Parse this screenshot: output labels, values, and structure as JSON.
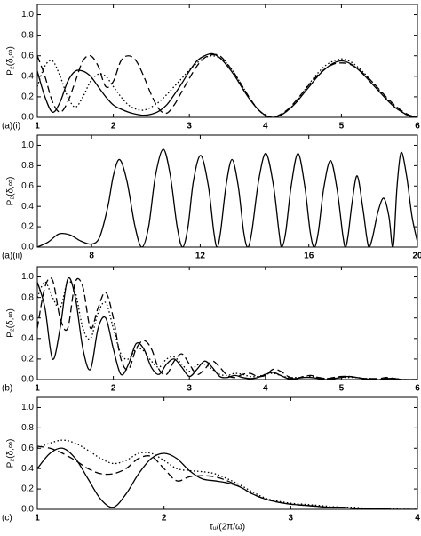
{
  "chart_data": [
    {
      "type": "line",
      "panel_label": "(a)(i)",
      "ylabel": "P₂(δ,∞)",
      "xlim": [
        1,
        6
      ],
      "ylim": [
        0,
        1.1
      ],
      "xticks": [
        1,
        2,
        3,
        4,
        5,
        6
      ],
      "yticks": [
        {
          "value": 0,
          "label": "0.0"
        },
        0.2,
        0.4,
        0.6,
        0.8,
        {
          "value": 1,
          "label": "1.0"
        }
      ],
      "x": [
        1,
        1.1,
        1.2,
        1.3,
        1.4,
        1.5,
        1.6,
        1.7,
        1.8,
        1.9,
        2,
        2.1,
        2.2,
        2.3,
        2.4,
        2.5,
        2.6,
        2.7,
        2.8,
        2.9,
        3,
        3.1,
        3.2,
        3.3,
        3.4,
        3.5,
        3.6,
        3.7,
        3.8,
        3.9,
        4,
        4.1,
        4.2,
        4.3,
        4.4,
        4.5,
        4.6,
        4.7,
        4.8,
        4.9,
        5,
        5.1,
        5.2,
        5.3,
        5.4,
        5.5,
        5.6,
        5.7,
        5.8,
        5.9,
        6
      ],
      "series": [
        {
          "color": "#000",
          "style": "solid",
          "values": [
            0.45,
            0.2,
            0.05,
            0.15,
            0.35,
            0.45,
            0.45,
            0.4,
            0.3,
            0.2,
            0.12,
            0.08,
            0.05,
            0.03,
            0.02,
            0.03,
            0.06,
            0.12,
            0.22,
            0.33,
            0.45,
            0.55,
            0.6,
            0.62,
            0.58,
            0.5,
            0.4,
            0.28,
            0.17,
            0.08,
            0.02,
            0,
            0.02,
            0.07,
            0.14,
            0.23,
            0.32,
            0.41,
            0.48,
            0.53,
            0.55,
            0.53,
            0.48,
            0.41,
            0.33,
            0.25,
            0.17,
            0.1,
            0.05,
            0.01,
            0
          ]
        },
        {
          "color": "#000",
          "style": "dashed",
          "values": [
            0.6,
            0.4,
            0.15,
            0.05,
            0.15,
            0.35,
            0.55,
            0.6,
            0.5,
            0.3,
            0.35,
            0.55,
            0.6,
            0.55,
            0.4,
            0.22,
            0.08,
            0.04,
            0.12,
            0.25,
            0.38,
            0.5,
            0.58,
            0.61,
            0.6,
            0.52,
            0.42,
            0.3,
            0.18,
            0.08,
            0.02,
            0,
            0.03,
            0.08,
            0.16,
            0.25,
            0.34,
            0.42,
            0.48,
            0.52,
            0.53,
            0.52,
            0.48,
            0.42,
            0.35,
            0.27,
            0.19,
            0.12,
            0.06,
            0.02,
            0
          ]
        },
        {
          "color": "#000",
          "style": "dotted",
          "values": [
            0.3,
            0.5,
            0.55,
            0.4,
            0.2,
            0.1,
            0.2,
            0.35,
            0.42,
            0.4,
            0.3,
            0.2,
            0.12,
            0.08,
            0.07,
            0.1,
            0.15,
            0.22,
            0.3,
            0.38,
            0.46,
            0.53,
            0.58,
            0.6,
            0.58,
            0.52,
            0.42,
            0.3,
            0.18,
            0.08,
            0.02,
            0,
            0.02,
            0.07,
            0.15,
            0.25,
            0.35,
            0.44,
            0.51,
            0.55,
            0.57,
            0.55,
            0.5,
            0.43,
            0.35,
            0.26,
            0.18,
            0.11,
            0.05,
            0.01,
            0
          ]
        }
      ]
    },
    {
      "type": "line",
      "panel_label": "(a)(ii)",
      "ylabel": "P₂(δ,∞)",
      "xlim": [
        6,
        20
      ],
      "ylim": [
        0,
        1.1
      ],
      "xticks": [
        8,
        12,
        16,
        20
      ],
      "yticks": [
        {
          "value": 0,
          "label": "0.0"
        },
        0.2,
        0.4,
        0.6,
        0.8,
        {
          "value": 1,
          "label": "1.0"
        }
      ],
      "x": [
        6,
        6.4,
        6.8,
        7.2,
        7.6,
        8,
        8.3,
        8.6,
        8.8,
        9.03,
        9.3,
        9.6,
        9.85,
        10.1,
        10.35,
        10.64,
        10.9,
        11.15,
        11.35,
        11.55,
        11.75,
        12.02,
        12.3,
        12.5,
        12.62,
        12.75,
        12.95,
        13.17,
        13.4,
        13.6,
        13.75,
        13.9,
        14.15,
        14.42,
        14.7,
        14.9,
        15,
        15.15,
        15.35,
        15.6,
        15.85,
        16.05,
        16.2,
        16.35,
        16.55,
        16.8,
        17.05,
        17.25,
        17.35,
        17.45,
        17.6,
        17.78,
        17.98,
        18.13,
        18.22,
        18.35,
        18.55,
        18.76,
        18.95,
        19.05,
        19.1,
        19.15,
        19.25,
        19.4,
        19.6,
        19.8,
        20
      ],
      "series": [
        {
          "color": "#000",
          "style": "solid",
          "values": [
            0,
            0.05,
            0.13,
            0.12,
            0.06,
            0.03,
            0.1,
            0.4,
            0.7,
            0.86,
            0.65,
            0.2,
            0,
            0.2,
            0.7,
            0.96,
            0.7,
            0.2,
            0,
            0.2,
            0.65,
            0.9,
            0.6,
            0.15,
            0,
            0.15,
            0.6,
            0.86,
            0.6,
            0.15,
            0,
            0.15,
            0.65,
            0.92,
            0.6,
            0.15,
            0,
            0.15,
            0.6,
            0.92,
            0.6,
            0.15,
            0,
            0.15,
            0.58,
            0.85,
            0.55,
            0.12,
            0,
            0.12,
            0.45,
            0.7,
            0.4,
            0.1,
            0,
            0.1,
            0.35,
            0.48,
            0.3,
            0.05,
            0,
            0.12,
            0.6,
            0.93,
            0.7,
            0.3,
            0.05
          ]
        }
      ]
    },
    {
      "type": "line",
      "panel_label": "(b)",
      "ylabel": "P₂(δ,∞)",
      "xlim": [
        1,
        6
      ],
      "ylim": [
        0,
        1.1
      ],
      "xticks": [
        1,
        2,
        3,
        4,
        5,
        6
      ],
      "yticks": [
        {
          "value": 0,
          "label": "0.0"
        },
        0.2,
        0.4,
        0.6,
        0.8,
        {
          "value": 1,
          "label": "1.0"
        }
      ],
      "x": [
        1,
        1.1,
        1.2,
        1.3,
        1.4,
        1.5,
        1.6,
        1.7,
        1.8,
        1.9,
        2,
        2.1,
        2.2,
        2.3,
        2.4,
        2.5,
        2.6,
        2.7,
        2.8,
        2.9,
        3,
        3.1,
        3.2,
        3.3,
        3.4,
        3.5,
        3.6,
        3.7,
        3.8,
        3.9,
        4,
        4.1,
        4.2,
        4.3,
        4.4,
        4.5,
        4.6,
        4.7,
        4.8,
        4.9,
        5,
        5.1,
        5.2,
        5.3,
        5.4,
        5.5,
        5.6,
        5.7,
        5.8,
        5.9,
        6
      ],
      "series": [
        {
          "color": "#000",
          "style": "solid",
          "values": [
            0.95,
            0.7,
            0.2,
            0.5,
            0.98,
            0.8,
            0.3,
            0.1,
            0.5,
            0.6,
            0.3,
            0.05,
            0.15,
            0.35,
            0.3,
            0.12,
            0.05,
            0.15,
            0.2,
            0.12,
            0.03,
            0.1,
            0.18,
            0.12,
            0.03,
            0.02,
            0.04,
            0.02,
            0.01,
            0.02,
            0.05,
            0.07,
            0.04,
            0.01,
            0.01,
            0.02,
            0.02,
            0.01,
            0,
            0.01,
            0.02,
            0.03,
            0.02,
            0.01,
            0,
            0,
            0.01,
            0.01,
            0,
            0,
            0
          ]
        },
        {
          "color": "#000",
          "style": "dashed",
          "values": [
            0.5,
            0.9,
            0.97,
            0.6,
            0.5,
            0.95,
            0.9,
            0.5,
            0.7,
            0.85,
            0.6,
            0.2,
            0.1,
            0.3,
            0.38,
            0.3,
            0.1,
            0.05,
            0.18,
            0.25,
            0.15,
            0.05,
            0.1,
            0.18,
            0.12,
            0.04,
            0.02,
            0.05,
            0.06,
            0.03,
            0.04,
            0.1,
            0.08,
            0.03,
            0.01,
            0.03,
            0.04,
            0.02,
            0.01,
            0.02,
            0.03,
            0.03,
            0.02,
            0.01,
            0.01,
            0.01,
            0.02,
            0.01,
            0,
            0,
            0
          ]
        },
        {
          "color": "#000",
          "style": "dotted",
          "values": [
            0.8,
            0.95,
            0.8,
            0.7,
            0.95,
            0.85,
            0.5,
            0.4,
            0.65,
            0.75,
            0.5,
            0.25,
            0.2,
            0.3,
            0.28,
            0.18,
            0.12,
            0.2,
            0.22,
            0.15,
            0.08,
            0.14,
            0.15,
            0.1,
            0.05,
            0.04,
            0.06,
            0.05,
            0.03,
            0.03,
            0.05,
            0.06,
            0.04,
            0.02,
            0.02,
            0.02,
            0.03,
            0.02,
            0.01,
            0.01,
            0.02,
            0.02,
            0.02,
            0.01,
            0.01,
            0,
            0.01,
            0.01,
            0,
            0,
            0
          ]
        }
      ]
    },
    {
      "type": "line",
      "panel_label": "(c)",
      "ylabel": "P₂(δ,∞)",
      "xlabel": "τᵤ/(2π/ω)",
      "xlim": [
        1,
        4
      ],
      "ylim": [
        0,
        1.1
      ],
      "xticks": [
        1,
        2,
        3,
        4
      ],
      "yticks": [
        {
          "value": 0,
          "label": "0.0"
        },
        0.2,
        0.4,
        0.6,
        0.8,
        {
          "value": 1,
          "label": "1.0"
        }
      ],
      "x": [
        1,
        1.1,
        1.2,
        1.3,
        1.4,
        1.5,
        1.6,
        1.7,
        1.8,
        1.9,
        2,
        2.1,
        2.2,
        2.3,
        2.4,
        2.5,
        2.6,
        2.7,
        2.8,
        2.9,
        3,
        3.1,
        3.2,
        3.3,
        3.4,
        3.5,
        3.6,
        3.7,
        3.8,
        3.9,
        4
      ],
      "series": [
        {
          "color": "#000",
          "style": "solid",
          "values": [
            0.4,
            0.55,
            0.6,
            0.5,
            0.3,
            0.1,
            0.02,
            0.15,
            0.35,
            0.5,
            0.55,
            0.5,
            0.38,
            0.3,
            0.28,
            0.26,
            0.22,
            0.15,
            0.1,
            0.07,
            0.05,
            0.04,
            0.03,
            0.02,
            0.02,
            0.01,
            0.01,
            0.01,
            0,
            0,
            0
          ]
        },
        {
          "color": "#000",
          "style": "dashed",
          "values": [
            0.62,
            0.6,
            0.55,
            0.48,
            0.4,
            0.35,
            0.35,
            0.4,
            0.5,
            0.52,
            0.4,
            0.28,
            0.32,
            0.33,
            0.32,
            0.28,
            0.22,
            0.15,
            0.1,
            0.07,
            0.05,
            0.04,
            0.03,
            0.02,
            0.02,
            0.01,
            0.01,
            0.01,
            0,
            0,
            0
          ]
        },
        {
          "color": "#000",
          "style": "dotted",
          "values": [
            0.6,
            0.65,
            0.68,
            0.65,
            0.58,
            0.5,
            0.45,
            0.48,
            0.55,
            0.55,
            0.48,
            0.4,
            0.38,
            0.37,
            0.35,
            0.3,
            0.24,
            0.17,
            0.11,
            0.08,
            0.06,
            0.05,
            0.04,
            0.03,
            0.02,
            0.02,
            0.01,
            0.01,
            0.01,
            0,
            0
          ]
        }
      ]
    }
  ]
}
